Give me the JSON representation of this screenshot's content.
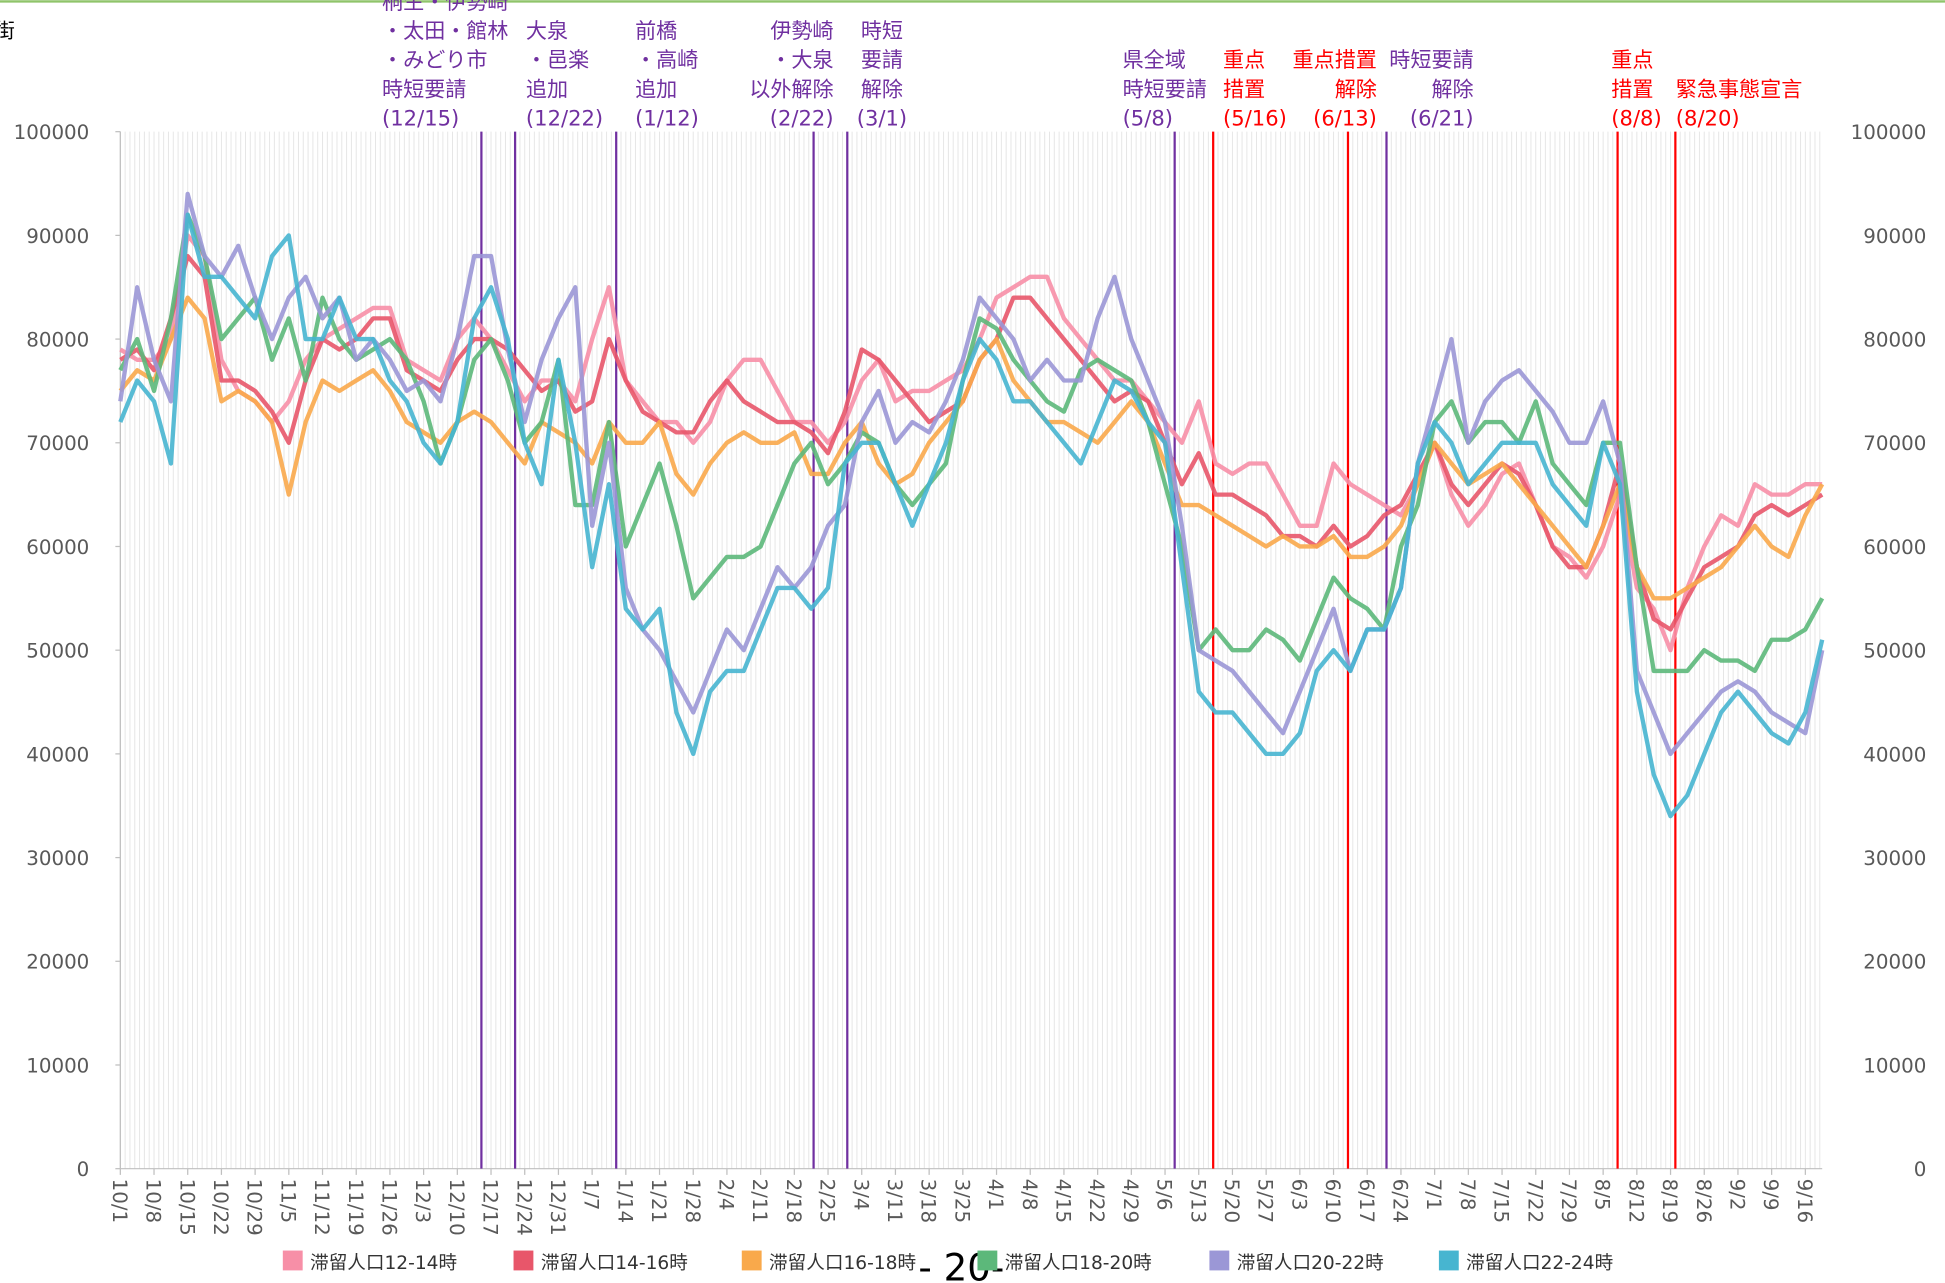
{
  "corner_label": "街",
  "page_number": "- 20-",
  "chart_data": {
    "type": "line",
    "categories": [
      "10/1",
      null,
      "10/8",
      null,
      "10/15",
      null,
      "10/22",
      null,
      "10/29",
      null,
      "11/5",
      null,
      "11/12",
      null,
      "11/19",
      null,
      "11/26",
      null,
      "12/3",
      null,
      "12/10",
      null,
      "12/17",
      null,
      "12/24",
      null,
      "12/31",
      null,
      "1/7",
      null,
      "1/14",
      null,
      "1/21",
      null,
      "1/28",
      null,
      "2/4",
      null,
      "2/11",
      null,
      "2/18",
      null,
      "2/25",
      null,
      "3/4",
      null,
      "3/11",
      null,
      "3/18",
      null,
      "3/25",
      null,
      "4/1",
      null,
      "4/8",
      null,
      "4/15",
      null,
      "4/22",
      null,
      "4/29",
      null,
      "5/6",
      null,
      "5/13",
      null,
      "5/20",
      null,
      "5/27",
      null,
      "6/3",
      null,
      "6/10",
      null,
      "6/17",
      null,
      "6/24",
      null,
      "7/1",
      null,
      "7/8",
      null,
      "7/15",
      null,
      "7/22",
      null,
      "7/29",
      null,
      "8/5",
      null,
      "8/12",
      null,
      "8/19",
      null,
      "8/26",
      null,
      "9/2",
      null,
      "9/9",
      null,
      "9/16",
      null
    ],
    "ylim": [
      0,
      100000
    ],
    "yticks": [
      0,
      10000,
      20000,
      30000,
      40000,
      50000,
      60000,
      70000,
      80000,
      90000,
      100000
    ],
    "grid": false,
    "legend": "bottom",
    "series": [
      {
        "name": "滞留人口12-14時",
        "color": "#f78fa7",
        "values": [
          79000,
          78000,
          78000,
          80000,
          90000,
          88000,
          78000,
          75000,
          74000,
          72000,
          74000,
          78000,
          80000,
          81000,
          82000,
          83000,
          83000,
          78000,
          77000,
          76000,
          80000,
          82000,
          80000,
          77000,
          74000,
          76000,
          76000,
          74000,
          80000,
          85000,
          76000,
          74000,
          72000,
          72000,
          70000,
          72000,
          76000,
          78000,
          78000,
          75000,
          72000,
          72000,
          70000,
          72000,
          76000,
          78000,
          74000,
          75000,
          75000,
          76000,
          77000,
          80000,
          84000,
          85000,
          86000,
          86000,
          82000,
          80000,
          78000,
          76000,
          76000,
          74000,
          72000,
          70000,
          74000,
          68000,
          67000,
          68000,
          68000,
          65000,
          62000,
          62000,
          68000,
          66000,
          65000,
          64000,
          63000,
          66000,
          70000,
          65000,
          62000,
          64000,
          67000,
          68000,
          64000,
          60000,
          59000,
          57000,
          60000,
          65000,
          56000,
          54000,
          50000,
          56000,
          60000,
          63000,
          62000,
          66000,
          65000,
          65000,
          66000,
          66000
        ]
      },
      {
        "name": "滞留人口14-16時",
        "color": "#e8566a",
        "values": [
          78000,
          79000,
          77000,
          82000,
          88000,
          86000,
          76000,
          76000,
          75000,
          73000,
          70000,
          76000,
          80000,
          79000,
          80000,
          82000,
          82000,
          77000,
          76000,
          75000,
          78000,
          80000,
          80000,
          79000,
          77000,
          75000,
          76000,
          73000,
          74000,
          80000,
          76000,
          73000,
          72000,
          71000,
          71000,
          74000,
          76000,
          74000,
          73000,
          72000,
          72000,
          71000,
          69000,
          73000,
          79000,
          78000,
          76000,
          74000,
          72000,
          73000,
          74000,
          78000,
          80000,
          84000,
          84000,
          82000,
          80000,
          78000,
          76000,
          74000,
          75000,
          74000,
          70000,
          66000,
          69000,
          65000,
          65000,
          64000,
          63000,
          61000,
          61000,
          60000,
          62000,
          60000,
          61000,
          63000,
          64000,
          67000,
          70000,
          66000,
          64000,
          66000,
          68000,
          67000,
          64000,
          60000,
          58000,
          58000,
          62000,
          68000,
          58000,
          53000,
          52000,
          55000,
          58000,
          59000,
          60000,
          63000,
          64000,
          63000,
          64000,
          65000
        ]
      },
      {
        "name": "滞留人口16-18時",
        "color": "#f9a94b",
        "values": [
          75000,
          77000,
          76000,
          80000,
          84000,
          82000,
          74000,
          75000,
          74000,
          72000,
          65000,
          72000,
          76000,
          75000,
          76000,
          77000,
          75000,
          72000,
          71000,
          70000,
          72000,
          73000,
          72000,
          70000,
          68000,
          72000,
          71000,
          70000,
          68000,
          72000,
          70000,
          70000,
          72000,
          67000,
          65000,
          68000,
          70000,
          71000,
          70000,
          70000,
          71000,
          67000,
          67000,
          70000,
          72000,
          68000,
          66000,
          67000,
          70000,
          72000,
          74000,
          78000,
          80000,
          76000,
          74000,
          72000,
          72000,
          71000,
          70000,
          72000,
          74000,
          72000,
          68000,
          64000,
          64000,
          63000,
          62000,
          61000,
          60000,
          61000,
          60000,
          60000,
          61000,
          59000,
          59000,
          60000,
          62000,
          66000,
          70000,
          68000,
          66000,
          67000,
          68000,
          66000,
          64000,
          62000,
          60000,
          58000,
          62000,
          66000,
          58000,
          55000,
          55000,
          56000,
          57000,
          58000,
          60000,
          62000,
          60000,
          59000,
          63000,
          66000
        ]
      },
      {
        "name": "滞留人口18-20時",
        "color": "#5cb87a",
        "values": [
          77000,
          80000,
          75000,
          82000,
          92000,
          88000,
          80000,
          82000,
          84000,
          78000,
          82000,
          76000,
          84000,
          80000,
          78000,
          79000,
          80000,
          78000,
          74000,
          68000,
          72000,
          78000,
          80000,
          76000,
          70000,
          72000,
          78000,
          64000,
          64000,
          72000,
          60000,
          64000,
          68000,
          62000,
          55000,
          57000,
          59000,
          59000,
          60000,
          64000,
          68000,
          70000,
          66000,
          68000,
          71000,
          70000,
          66000,
          64000,
          66000,
          68000,
          76000,
          82000,
          81000,
          78000,
          76000,
          74000,
          73000,
          77000,
          78000,
          77000,
          76000,
          72000,
          66000,
          60000,
          50000,
          52000,
          50000,
          50000,
          52000,
          51000,
          49000,
          53000,
          57000,
          55000,
          54000,
          52000,
          60000,
          64000,
          72000,
          74000,
          70000,
          72000,
          72000,
          70000,
          74000,
          68000,
          66000,
          64000,
          70000,
          70000,
          58000,
          48000,
          48000,
          48000,
          50000,
          49000,
          49000,
          48000,
          51000,
          51000,
          52000,
          55000
        ]
      },
      {
        "name": "滞留人口20-22時",
        "color": "#9b97d6",
        "values": [
          74000,
          85000,
          78000,
          74000,
          94000,
          88000,
          86000,
          89000,
          84000,
          80000,
          84000,
          86000,
          82000,
          84000,
          78000,
          80000,
          78000,
          75000,
          76000,
          74000,
          80000,
          88000,
          88000,
          79000,
          72000,
          78000,
          82000,
          85000,
          62000,
          70000,
          56000,
          52000,
          50000,
          47000,
          44000,
          48000,
          52000,
          50000,
          54000,
          58000,
          56000,
          58000,
          62000,
          64000,
          72000,
          75000,
          70000,
          72000,
          71000,
          74000,
          78000,
          84000,
          82000,
          80000,
          76000,
          78000,
          76000,
          76000,
          82000,
          86000,
          80000,
          76000,
          72000,
          62000,
          50000,
          49000,
          48000,
          46000,
          44000,
          42000,
          46000,
          50000,
          54000,
          48000,
          52000,
          52000,
          56000,
          68000,
          74000,
          80000,
          70000,
          74000,
          76000,
          77000,
          75000,
          73000,
          70000,
          70000,
          74000,
          68000,
          48000,
          44000,
          40000,
          42000,
          44000,
          46000,
          47000,
          46000,
          44000,
          43000,
          42000,
          50000
        ]
      },
      {
        "name": "滞留人口22-24時",
        "color": "#47b5d0",
        "values": [
          72000,
          76000,
          74000,
          68000,
          92000,
          86000,
          86000,
          84000,
          82000,
          88000,
          90000,
          80000,
          80000,
          84000,
          80000,
          80000,
          76000,
          74000,
          70000,
          68000,
          72000,
          82000,
          85000,
          80000,
          70000,
          66000,
          78000,
          70000,
          58000,
          66000,
          54000,
          52000,
          54000,
          44000,
          40000,
          46000,
          48000,
          48000,
          52000,
          56000,
          56000,
          54000,
          56000,
          68000,
          70000,
          70000,
          66000,
          62000,
          66000,
          70000,
          76000,
          80000,
          78000,
          74000,
          74000,
          72000,
          70000,
          68000,
          72000,
          76000,
          75000,
          72000,
          70000,
          58000,
          46000,
          44000,
          44000,
          42000,
          40000,
          40000,
          42000,
          48000,
          50000,
          48000,
          52000,
          52000,
          56000,
          68000,
          72000,
          70000,
          66000,
          68000,
          70000,
          70000,
          70000,
          66000,
          64000,
          62000,
          70000,
          66000,
          46000,
          38000,
          34000,
          36000,
          40000,
          44000,
          46000,
          44000,
          42000,
          41000,
          44000,
          51000
        ]
      }
    ],
    "annotations": [
      {
        "lines": [
          "桐生・伊勢崎",
          "・太田・館林",
          "・みどり市",
          "時短要請",
          "(12/15)"
        ],
        "color": "#7030a0"
      },
      {
        "lines": [
          "大泉",
          "・邑楽",
          "追加",
          "(12/22)"
        ],
        "color": "#7030a0"
      },
      {
        "lines": [
          "前橋",
          "・高崎",
          "追加",
          "(1/12)"
        ],
        "color": "#7030a0"
      },
      {
        "lines": [
          "伊勢崎",
          "・大泉",
          "以外解除",
          "(2/22)"
        ],
        "color": "#7030a0"
      },
      {
        "lines": [
          "時短",
          "要請",
          "解除",
          "(3/1)"
        ],
        "color": "#7030a0"
      },
      {
        "lines": [
          "県全域",
          "時短要請",
          "(5/8)"
        ],
        "color": "#7030a0"
      },
      {
        "lines": [
          "重点",
          "措置",
          "(5/16)"
        ],
        "color": "#ff0000"
      },
      {
        "lines": [
          "重点措置",
          "解除",
          "(6/13)"
        ],
        "color": "#ff0000"
      },
      {
        "lines": [
          "時短要請",
          "解除",
          "(6/21)"
        ],
        "color": "#7030a0"
      },
      {
        "lines": [
          "重点",
          "措置",
          "(8/8)"
        ],
        "color": "#ff0000"
      },
      {
        "lines": [
          "緊急事態宣言",
          "(8/20)"
        ],
        "color": "#ff0000"
      }
    ]
  }
}
